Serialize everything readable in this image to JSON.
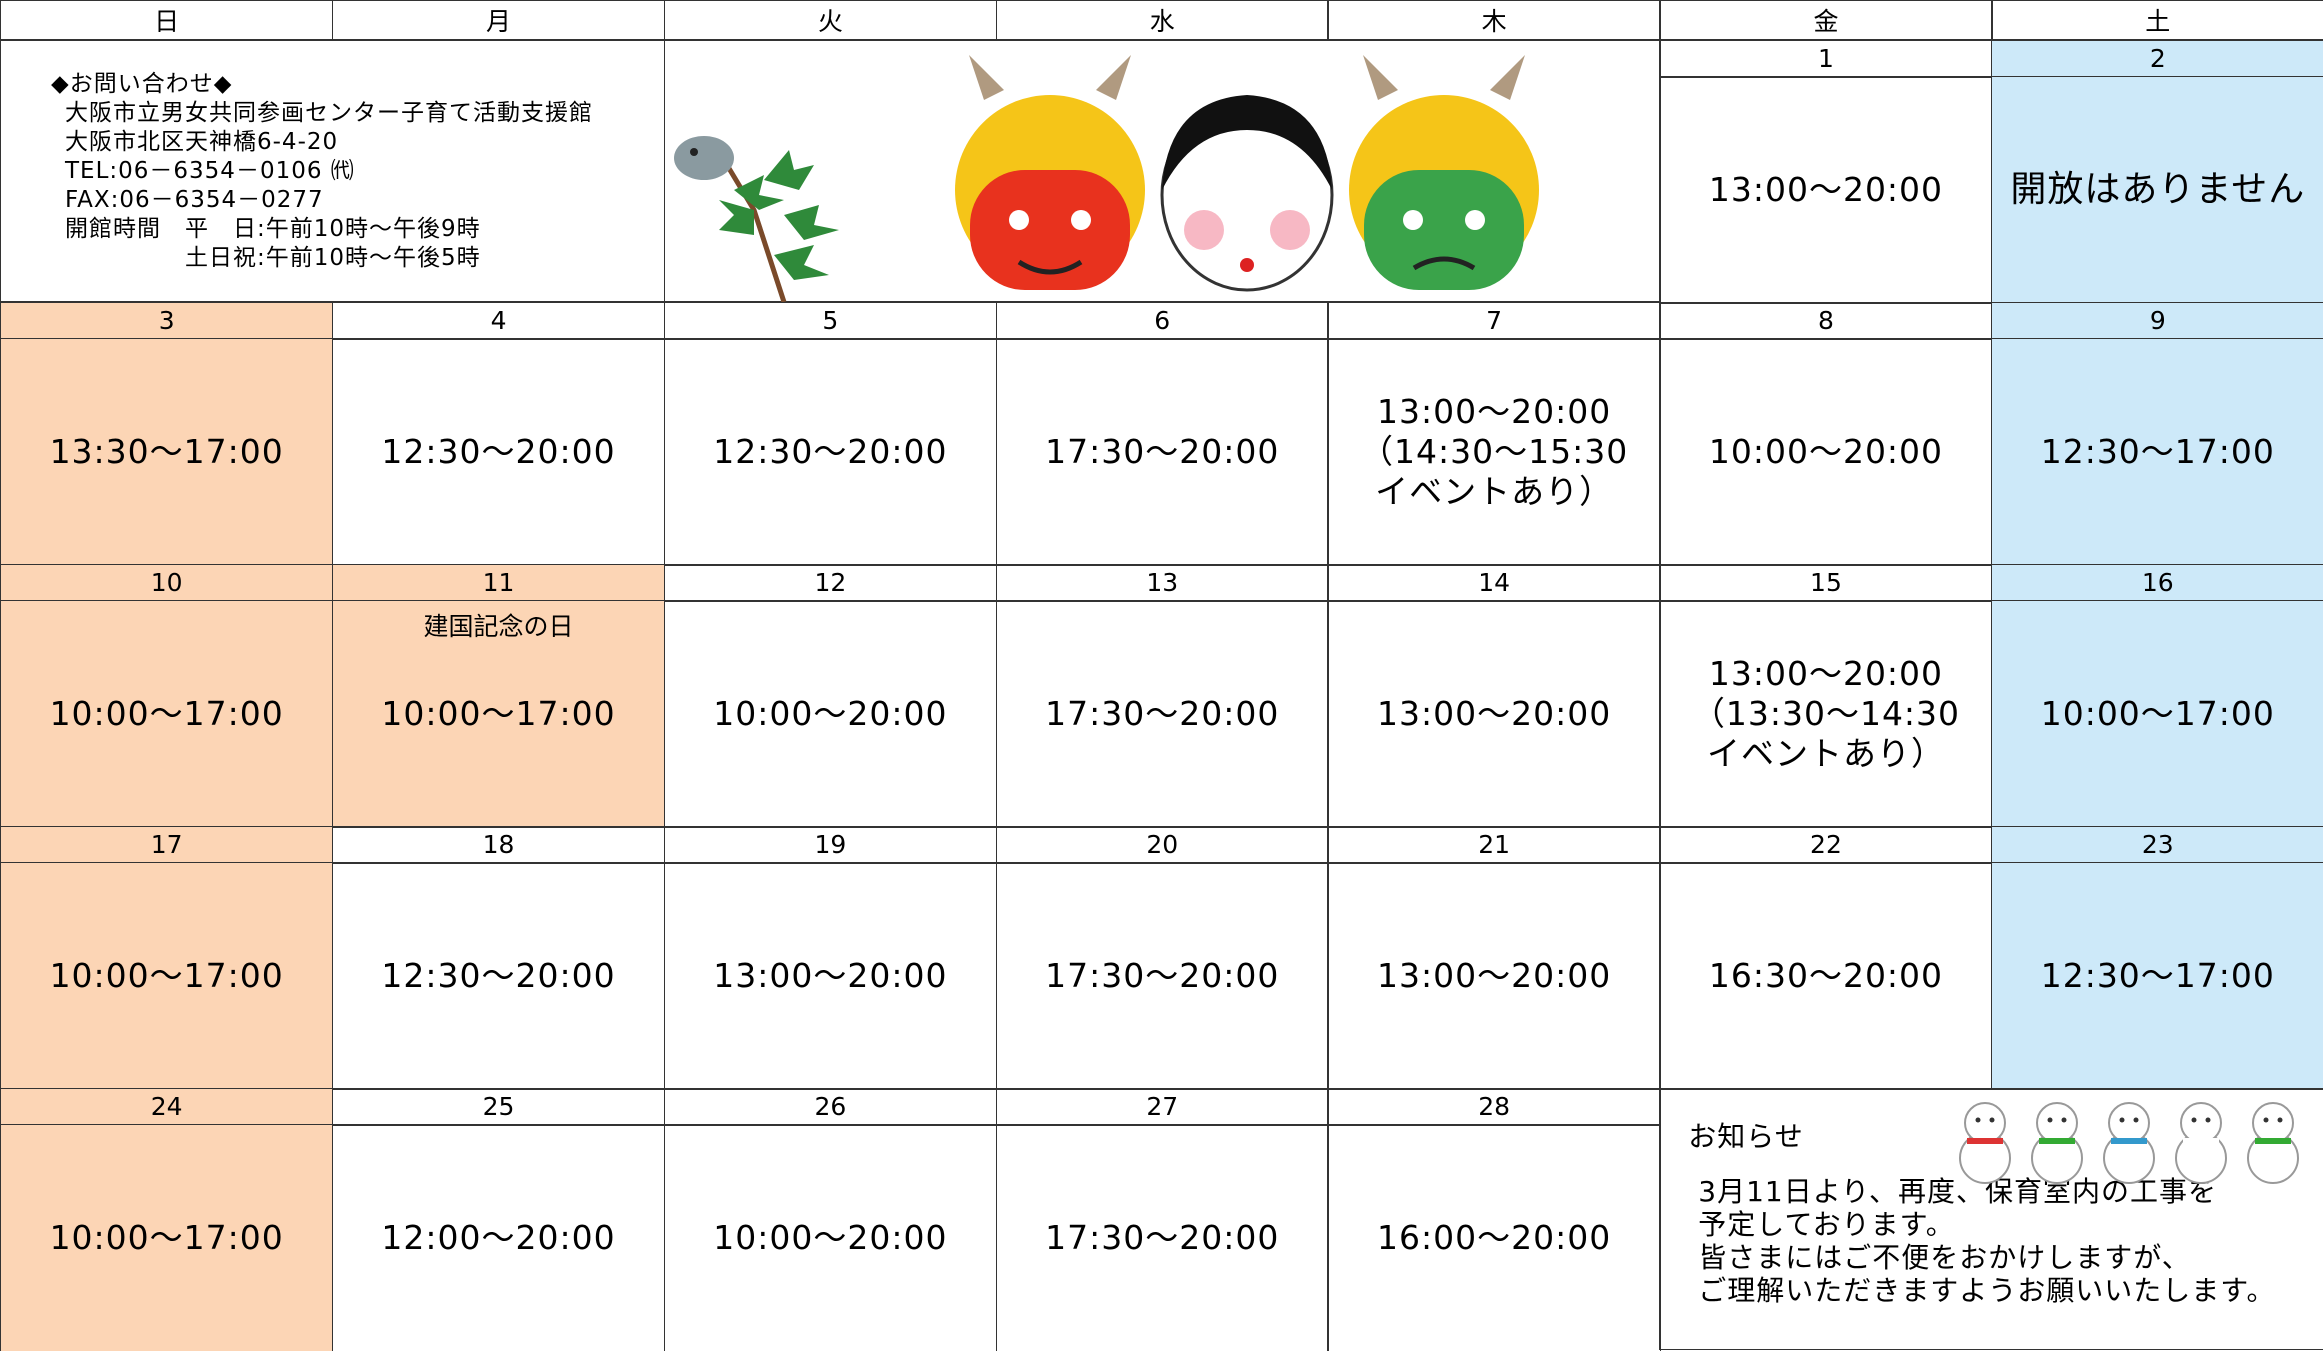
{
  "weekdays": [
    "日",
    "月",
    "火",
    "水",
    "木",
    "金",
    "土"
  ],
  "contact": {
    "title": "◆お問い合わせ◆",
    "lines": [
      "大阪市立男女共同参画センター子育て活動支援館",
      "大阪市北区天神橋6-4-20",
      "TEL:06－6354－0106 ㈹",
      "FAX:06－6354－0277",
      "開館時間　平　日:午前10時～午後9時",
      "　　　　　土日祝:午前10時～午後5時"
    ]
  },
  "weeks": [
    [
      {
        "date": "1",
        "hours": [
          "13:00～20:00"
        ]
      },
      {
        "date": "2",
        "hours": [
          "開放はありません"
        ]
      }
    ],
    [
      {
        "date": "3",
        "hours": [
          "13:30～17:00"
        ]
      },
      {
        "date": "4",
        "hours": [
          "12:30～20:00"
        ]
      },
      {
        "date": "5",
        "hours": [
          "12:30～20:00"
        ]
      },
      {
        "date": "6",
        "hours": [
          "17:30～20:00"
        ]
      },
      {
        "date": "7",
        "hours": [
          "13:00～20:00",
          "（14:30～15:30",
          "イベントあり）"
        ]
      },
      {
        "date": "8",
        "hours": [
          "10:00～20:00"
        ]
      },
      {
        "date": "9",
        "hours": [
          "12:30～17:00"
        ]
      }
    ],
    [
      {
        "date": "10",
        "hours": [
          "10:00～17:00"
        ]
      },
      {
        "date": "11",
        "holiday": "建国記念の日",
        "hours": [
          "10:00～17:00"
        ]
      },
      {
        "date": "12",
        "hours": [
          "10:00～20:00"
        ]
      },
      {
        "date": "13",
        "hours": [
          "17:30～20:00"
        ]
      },
      {
        "date": "14",
        "hours": [
          "13:00～20:00"
        ]
      },
      {
        "date": "15",
        "hours": [
          "13:00～20:00",
          "（13:30～14:30",
          "イベントあり）"
        ]
      },
      {
        "date": "16",
        "hours": [
          "10:00～17:00"
        ]
      }
    ],
    [
      {
        "date": "17",
        "hours": [
          "10:00～17:00"
        ]
      },
      {
        "date": "18",
        "hours": [
          "12:30～20:00"
        ]
      },
      {
        "date": "19",
        "hours": [
          "13:00～20:00"
        ]
      },
      {
        "date": "20",
        "hours": [
          "17:30～20:00"
        ]
      },
      {
        "date": "21",
        "hours": [
          "13:00～20:00"
        ]
      },
      {
        "date": "22",
        "hours": [
          "16:30～20:00"
        ]
      },
      {
        "date": "23",
        "hours": [
          "12:30～17:00"
        ]
      }
    ],
    [
      {
        "date": "24",
        "hours": [
          "10:00～17:00"
        ]
      },
      {
        "date": "25",
        "hours": [
          "12:00～20:00"
        ]
      },
      {
        "date": "26",
        "hours": [
          "10:00～20:00"
        ]
      },
      {
        "date": "27",
        "hours": [
          "17:30～20:00"
        ]
      },
      {
        "date": "28",
        "hours": [
          "16:00～20:00"
        ]
      }
    ]
  ],
  "notice": {
    "title": "お知らせ",
    "lines": [
      "3月11日より、再度、保育室内の工事を",
      "予定しております。",
      "皆さまにはご不便をおかけしますが、",
      "ご理解いただきますようお願いいたします。"
    ]
  }
}
